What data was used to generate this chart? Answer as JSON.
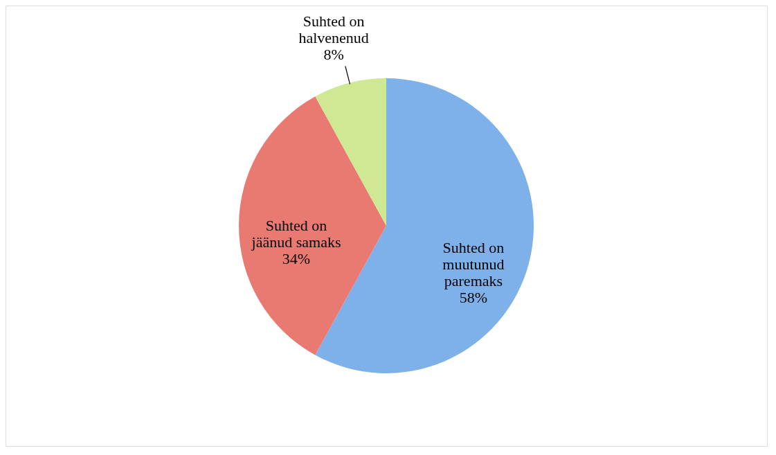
{
  "chart_data": {
    "type": "pie",
    "categories": [
      "Suhted on muutunud paremaks",
      "Suhted on jäänud samaks",
      "Suhted on halvenenud"
    ],
    "values": [
      58,
      34,
      8
    ],
    "value_labels": [
      "58%",
      "34%",
      "8%"
    ],
    "colors": [
      "#7eb0ea",
      "#e97a72",
      "#cfe894"
    ],
    "legend": false
  }
}
